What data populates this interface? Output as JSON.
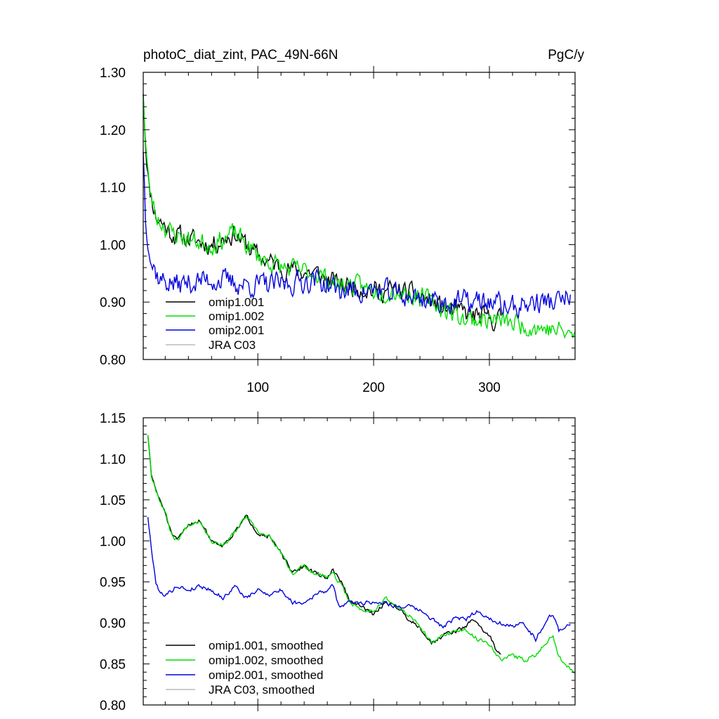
{
  "chart_data": [
    {
      "type": "line",
      "title": "photoC_diat_zint, PAC_49N-66N",
      "units": "PgC/y",
      "xlim": [
        1,
        374
      ],
      "ylim": [
        0.8,
        1.3
      ],
      "x_ticks": [
        100,
        200,
        300
      ],
      "y_ticks": [
        "0.80",
        "0.90",
        "1.00",
        "1.10",
        "1.20",
        "1.30"
      ],
      "legend_position": "bottom-left",
      "series": [
        {
          "name": "omip1.001",
          "color": "#000000",
          "anchors": [
            [
              1,
              1.27
            ],
            [
              3,
              1.18
            ],
            [
              6,
              1.1
            ],
            [
              12,
              1.05
            ],
            [
              25,
              1.02
            ],
            [
              40,
              1.01
            ],
            [
              60,
              1.0
            ],
            [
              80,
              1.02
            ],
            [
              100,
              0.98
            ],
            [
              120,
              0.96
            ],
            [
              150,
              0.95
            ],
            [
              170,
              0.93
            ],
            [
              180,
              0.93
            ],
            [
              200,
              0.92
            ],
            [
              220,
              0.92
            ],
            [
              240,
              0.91
            ],
            [
              260,
              0.89
            ],
            [
              280,
              0.88
            ],
            [
              300,
              0.87
            ],
            [
              310,
              0.87
            ]
          ],
          "amp": 0.028,
          "seed": 11
        },
        {
          "name": "omip1.002",
          "color": "#00dd00",
          "anchors": [
            [
              1,
              1.27
            ],
            [
              3,
              1.18
            ],
            [
              6,
              1.1
            ],
            [
              12,
              1.05
            ],
            [
              25,
              1.02
            ],
            [
              40,
              1.01
            ],
            [
              60,
              1.0
            ],
            [
              80,
              1.02
            ],
            [
              100,
              0.98
            ],
            [
              120,
              0.96
            ],
            [
              150,
              0.95
            ],
            [
              170,
              0.93
            ],
            [
              180,
              0.93
            ],
            [
              200,
              0.92
            ],
            [
              220,
              0.92
            ],
            [
              240,
              0.91
            ],
            [
              260,
              0.89
            ],
            [
              280,
              0.87
            ],
            [
              300,
              0.87
            ],
            [
              330,
              0.86
            ],
            [
              360,
              0.85
            ],
            [
              374,
              0.84
            ]
          ],
          "amp": 0.028,
          "seed": 23
        },
        {
          "name": "omip2.001",
          "color": "#0000dd",
          "anchors": [
            [
              1,
              1.17
            ],
            [
              3,
              1.05
            ],
            [
              8,
              0.97
            ],
            [
              15,
              0.94
            ],
            [
              30,
              0.93
            ],
            [
              60,
              0.94
            ],
            [
              90,
              0.93
            ],
            [
              120,
              0.93
            ],
            [
              150,
              0.94
            ],
            [
              170,
              0.92
            ],
            [
              200,
              0.92
            ],
            [
              230,
              0.91
            ],
            [
              260,
              0.9
            ],
            [
              280,
              0.9
            ],
            [
              300,
              0.9
            ],
            [
              320,
              0.89
            ],
            [
              340,
              0.9
            ],
            [
              360,
              0.9
            ],
            [
              370,
              0.91
            ]
          ],
          "amp": 0.032,
          "seed": 37
        },
        {
          "name": "JRA C03",
          "color": "#bbbbbb",
          "anchors": [],
          "amp": 0,
          "seed": 0
        }
      ]
    },
    {
      "type": "line",
      "title": "",
      "units": "",
      "xlim": [
        1,
        374
      ],
      "ylim": [
        0.8,
        1.15
      ],
      "x_ticks": [
        100,
        200,
        300
      ],
      "y_ticks": [
        "0.80",
        "0.85",
        "0.90",
        "0.95",
        "1.00",
        "1.05",
        "1.10",
        "1.15"
      ],
      "legend_position": "bottom-left",
      "series": [
        {
          "name": "omip1.001, smoothed",
          "color": "#000000",
          "anchors": [
            [
              5,
              1.13
            ],
            [
              8,
              1.08
            ],
            [
              15,
              1.05
            ],
            [
              20,
              1.035
            ],
            [
              25,
              1.01
            ],
            [
              30,
              1.0
            ],
            [
              40,
              1.02
            ],
            [
              50,
              1.025
            ],
            [
              60,
              1.0
            ],
            [
              70,
              0.995
            ],
            [
              80,
              1.01
            ],
            [
              90,
              1.03
            ],
            [
              100,
              1.01
            ],
            [
              110,
              1.005
            ],
            [
              120,
              0.985
            ],
            [
              130,
              0.96
            ],
            [
              140,
              0.97
            ],
            [
              150,
              0.96
            ],
            [
              160,
              0.955
            ],
            [
              165,
              0.965
            ],
            [
              172,
              0.95
            ],
            [
              180,
              0.925
            ],
            [
              190,
              0.92
            ],
            [
              200,
              0.91
            ],
            [
              210,
              0.925
            ],
            [
              220,
              0.92
            ],
            [
              230,
              0.905
            ],
            [
              240,
              0.895
            ],
            [
              250,
              0.875
            ],
            [
              260,
              0.885
            ],
            [
              270,
              0.89
            ],
            [
              280,
              0.895
            ],
            [
              285,
              0.905
            ],
            [
              290,
              0.9
            ],
            [
              295,
              0.89
            ],
            [
              300,
              0.885
            ],
            [
              305,
              0.87
            ],
            [
              310,
              0.862
            ]
          ],
          "amp": 0.004,
          "seed": 51
        },
        {
          "name": "omip1.002, smoothed",
          "color": "#00dd00",
          "anchors": [
            [
              5,
              1.13
            ],
            [
              8,
              1.08
            ],
            [
              15,
              1.05
            ],
            [
              20,
              1.035
            ],
            [
              25,
              1.01
            ],
            [
              30,
              1.0
            ],
            [
              40,
              1.02
            ],
            [
              50,
              1.025
            ],
            [
              60,
              1.0
            ],
            [
              70,
              0.995
            ],
            [
              80,
              1.01
            ],
            [
              90,
              1.03
            ],
            [
              100,
              1.01
            ],
            [
              110,
              1.005
            ],
            [
              120,
              0.985
            ],
            [
              130,
              0.96
            ],
            [
              140,
              0.97
            ],
            [
              150,
              0.96
            ],
            [
              160,
              0.955
            ],
            [
              165,
              0.96
            ],
            [
              172,
              0.945
            ],
            [
              180,
              0.925
            ],
            [
              190,
              0.915
            ],
            [
              200,
              0.915
            ],
            [
              210,
              0.93
            ],
            [
              220,
              0.92
            ],
            [
              230,
              0.91
            ],
            [
              240,
              0.895
            ],
            [
              250,
              0.875
            ],
            [
              260,
              0.885
            ],
            [
              270,
              0.89
            ],
            [
              280,
              0.89
            ],
            [
              290,
              0.88
            ],
            [
              300,
              0.875
            ],
            [
              310,
              0.855
            ],
            [
              320,
              0.86
            ],
            [
              330,
              0.855
            ],
            [
              340,
              0.86
            ],
            [
              345,
              0.87
            ],
            [
              355,
              0.885
            ],
            [
              360,
              0.86
            ],
            [
              365,
              0.85
            ],
            [
              374,
              0.84
            ]
          ],
          "amp": 0.004,
          "seed": 67
        },
        {
          "name": "omip2.001, smoothed",
          "color": "#0000dd",
          "anchors": [
            [
              5,
              1.03
            ],
            [
              8,
              0.99
            ],
            [
              12,
              0.95
            ],
            [
              16,
              0.935
            ],
            [
              22,
              0.935
            ],
            [
              30,
              0.945
            ],
            [
              40,
              0.94
            ],
            [
              50,
              0.945
            ],
            [
              60,
              0.94
            ],
            [
              70,
              0.93
            ],
            [
              80,
              0.945
            ],
            [
              90,
              0.93
            ],
            [
              100,
              0.94
            ],
            [
              110,
              0.935
            ],
            [
              120,
              0.94
            ],
            [
              130,
              0.925
            ],
            [
              140,
              0.925
            ],
            [
              150,
              0.935
            ],
            [
              160,
              0.94
            ],
            [
              165,
              0.945
            ],
            [
              170,
              0.92
            ],
            [
              180,
              0.925
            ],
            [
              190,
              0.925
            ],
            [
              200,
              0.925
            ],
            [
              210,
              0.925
            ],
            [
              220,
              0.92
            ],
            [
              230,
              0.92
            ],
            [
              240,
              0.915
            ],
            [
              250,
              0.905
            ],
            [
              260,
              0.895
            ],
            [
              270,
              0.905
            ],
            [
              280,
              0.905
            ],
            [
              290,
              0.915
            ],
            [
              300,
              0.905
            ],
            [
              310,
              0.9
            ],
            [
              320,
              0.895
            ],
            [
              330,
              0.9
            ],
            [
              340,
              0.88
            ],
            [
              350,
              0.905
            ],
            [
              355,
              0.91
            ],
            [
              360,
              0.89
            ],
            [
              365,
              0.895
            ],
            [
              370,
              0.9
            ]
          ],
          "amp": 0.004,
          "seed": 79
        },
        {
          "name": "JRA C03, smoothed",
          "color": "#bbbbbb",
          "anchors": [],
          "amp": 0,
          "seed": 0
        }
      ]
    }
  ]
}
